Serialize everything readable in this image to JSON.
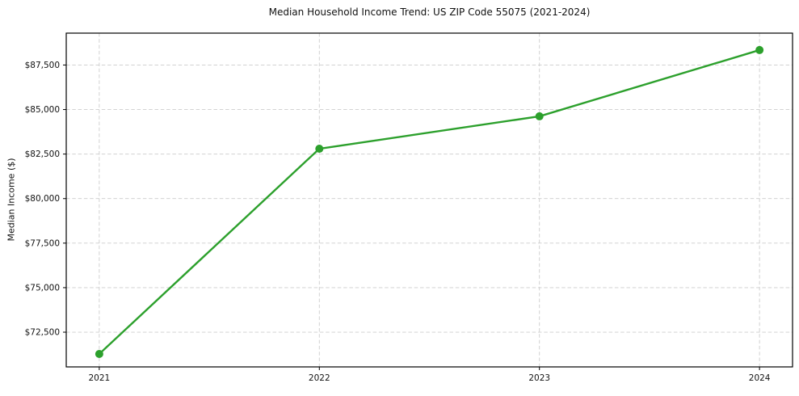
{
  "chart_data": {
    "type": "line",
    "title": "Median Household Income Trend: US ZIP Code 55075 (2021-2024)",
    "xlabel": "",
    "ylabel": "Median Income ($)",
    "series": [
      {
        "name": "Median Household Income",
        "x": [
          2021,
          2022,
          2023,
          2024
        ],
        "values": [
          71275,
          82800,
          84620,
          88340
        ]
      }
    ],
    "x_tick_labels": [
      "2021",
      "2022",
      "2023",
      "2024"
    ],
    "yticks": [
      72500,
      75000,
      77500,
      80000,
      82500,
      85000,
      87500
    ],
    "ytick_labels": [
      "$72,500",
      "$75,000",
      "$77,500",
      "$80,000",
      "$82,500",
      "$85,000",
      "$87,500"
    ],
    "xlim": [
      2020.85,
      2024.15
    ],
    "ylim": [
      70550,
      89290
    ],
    "grid": true,
    "grid_style": "dashed",
    "legend": false,
    "colors": {
      "line": "#2ca02c",
      "marker": "#2ca02c",
      "grid": "#cccccc",
      "border": "#000000",
      "text": "#111111",
      "background": "#ffffff"
    }
  }
}
